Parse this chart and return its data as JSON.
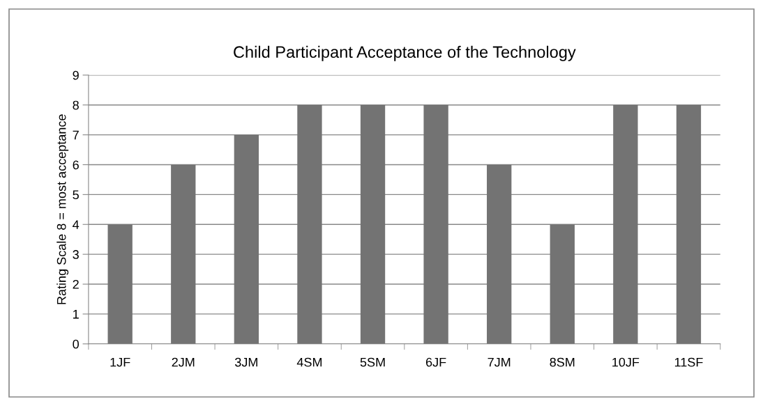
{
  "chart_data": {
    "type": "bar",
    "title": "Child Participant Acceptance of the Technology",
    "ylabel": "Rating Scale 8 = most acceptance",
    "categories": [
      "1JF",
      "2JM",
      "3JM",
      "4SM",
      "5SM",
      "6JF",
      "7JM",
      "8SM",
      "10JF",
      "11SF"
    ],
    "values": [
      4,
      6,
      7,
      8,
      8,
      8,
      6,
      4,
      8,
      8
    ],
    "color": "#737373",
    "ylim": [
      0,
      9
    ],
    "yticks": [
      0,
      1,
      2,
      3,
      4,
      5,
      6,
      7,
      8,
      9
    ],
    "grid": "y",
    "legend": false
  }
}
